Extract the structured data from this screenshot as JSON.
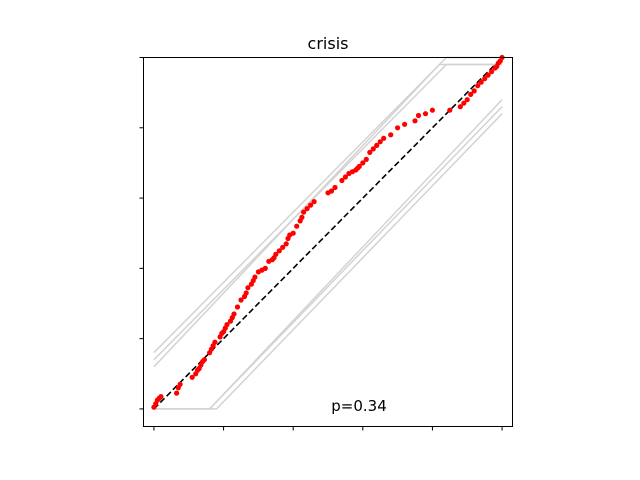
{
  "chart_data": {
    "type": "scatter",
    "title": "crisis",
    "xlabel": "",
    "ylabel": "",
    "xlim": [
      -0.03,
      1.03
    ],
    "ylim": [
      -0.05,
      1.0
    ],
    "x_ticks": [
      0,
      0.2,
      0.4,
      0.6,
      0.8,
      1.0
    ],
    "y_ticks": [
      0,
      0.2,
      0.4,
      0.6,
      0.8,
      1.0
    ],
    "tick_labels_visible": false,
    "grid": false,
    "annotation": "p=0.34",
    "point_color": "#ff0000",
    "reference_line": {
      "style": "dashed",
      "color": "#000000",
      "x": [
        0,
        1
      ],
      "y": [
        0,
        1
      ]
    },
    "confidence_bands": {
      "color": "#d3d3d3",
      "upper": [
        {
          "x": [
            0,
            0.84,
            1
          ],
          "y": [
            0.16,
            1,
            1
          ]
        },
        {
          "x": [
            0,
            0.84,
            1
          ],
          "y": [
            0.14,
            0.98,
            0.98
          ]
        },
        {
          "x": [
            0,
            0.82,
            1
          ],
          "y": [
            0.12,
            0.98,
            0.98
          ]
        }
      ],
      "lower": [
        {
          "x": [
            0,
            0.16,
            1
          ],
          "y": [
            0,
            0,
            0.88
          ]
        },
        {
          "x": [
            0,
            0.16,
            1
          ],
          "y": [
            0,
            0,
            0.86
          ]
        },
        {
          "x": [
            0,
            0.18,
            1
          ],
          "y": [
            0,
            0,
            0.84
          ]
        }
      ]
    },
    "points": {
      "x": [
        0.0,
        0.005,
        0.01,
        0.015,
        0.02,
        0.065,
        0.07,
        0.075,
        0.11,
        0.12,
        0.125,
        0.13,
        0.135,
        0.14,
        0.145,
        0.16,
        0.165,
        0.17,
        0.175,
        0.19,
        0.195,
        0.2,
        0.205,
        0.21,
        0.22,
        0.225,
        0.23,
        0.24,
        0.25,
        0.26,
        0.265,
        0.27,
        0.28,
        0.285,
        0.29,
        0.3,
        0.31,
        0.32,
        0.33,
        0.34,
        0.345,
        0.35,
        0.36,
        0.37,
        0.38,
        0.385,
        0.39,
        0.4,
        0.41,
        0.42,
        0.425,
        0.43,
        0.44,
        0.45,
        0.46,
        0.5,
        0.51,
        0.52,
        0.54,
        0.55,
        0.56,
        0.57,
        0.58,
        0.585,
        0.59,
        0.6,
        0.61,
        0.62,
        0.63,
        0.64,
        0.65,
        0.66,
        0.68,
        0.7,
        0.72,
        0.75,
        0.76,
        0.78,
        0.8,
        0.85,
        0.88,
        0.89,
        0.9,
        0.91,
        0.92,
        0.93,
        0.94,
        0.95,
        0.96,
        0.97,
        0.98,
        0.985,
        0.99,
        0.995,
        1.0
      ],
      "y": [
        0.005,
        0.015,
        0.025,
        0.03,
        0.035,
        0.045,
        0.06,
        0.07,
        0.09,
        0.1,
        0.11,
        0.115,
        0.125,
        0.135,
        0.14,
        0.16,
        0.17,
        0.18,
        0.19,
        0.205,
        0.215,
        0.22,
        0.23,
        0.24,
        0.25,
        0.26,
        0.27,
        0.29,
        0.31,
        0.32,
        0.33,
        0.345,
        0.355,
        0.365,
        0.375,
        0.39,
        0.395,
        0.4,
        0.42,
        0.425,
        0.43,
        0.44,
        0.45,
        0.46,
        0.47,
        0.485,
        0.495,
        0.5,
        0.52,
        0.535,
        0.545,
        0.56,
        0.57,
        0.58,
        0.59,
        0.615,
        0.62,
        0.63,
        0.65,
        0.66,
        0.67,
        0.675,
        0.68,
        0.685,
        0.69,
        0.7,
        0.71,
        0.73,
        0.74,
        0.75,
        0.76,
        0.77,
        0.78,
        0.8,
        0.81,
        0.82,
        0.835,
        0.84,
        0.85,
        0.85,
        0.86,
        0.87,
        0.88,
        0.895,
        0.905,
        0.92,
        0.93,
        0.94,
        0.95,
        0.96,
        0.97,
        0.975,
        0.985,
        0.99,
        1.0
      ]
    }
  }
}
